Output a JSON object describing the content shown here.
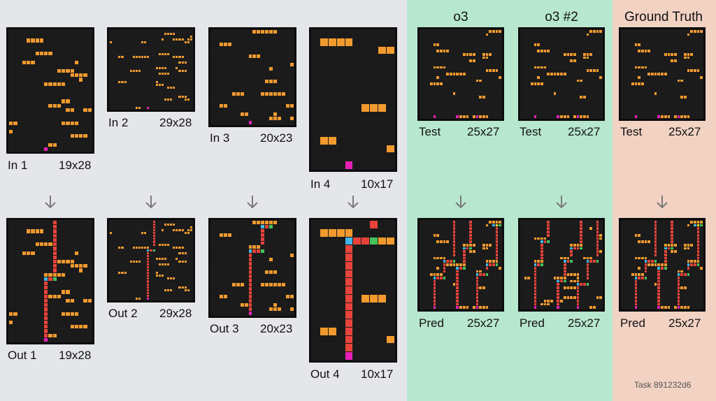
{
  "columns": {
    "o3_title": "o3",
    "o3_2_title": "o3 #2",
    "ground_truth_title": "Ground Truth"
  },
  "examples": [
    {
      "in_label": "In 1",
      "in_size": "19x28",
      "out_label": "Out 1",
      "out_size": "19x28"
    },
    {
      "in_label": "In 2",
      "in_size": "29x28",
      "out_label": "Out 2",
      "out_size": "29x28"
    },
    {
      "in_label": "In 3",
      "in_size": "20x23",
      "out_label": "Out 3",
      "out_size": "20x23"
    },
    {
      "in_label": "In 4",
      "in_size": "10x17",
      "out_label": "Out 4",
      "out_size": "10x17"
    }
  ],
  "test_columns": [
    {
      "test_label": "Test",
      "test_size": "25x27",
      "pred_label": "Pred",
      "pred_size": "25x27"
    },
    {
      "test_label": "Test",
      "test_size": "25x27",
      "pred_label": "Pred",
      "pred_size": "25x27"
    },
    {
      "test_label": "Test",
      "test_size": "25x27",
      "pred_label": "Pred",
      "pred_size": "25x27"
    }
  ],
  "task_id": "Task 891232d6",
  "colors": {
    "background": "#1a1a1a",
    "orange": "#f29a2e",
    "red": "#e8433a",
    "magenta": "#e620b6",
    "yellow": "#f4df2a",
    "blue": "#41b6e6",
    "green": "#44c45a"
  },
  "icons": {
    "arrow": "down-arrow-icon"
  }
}
